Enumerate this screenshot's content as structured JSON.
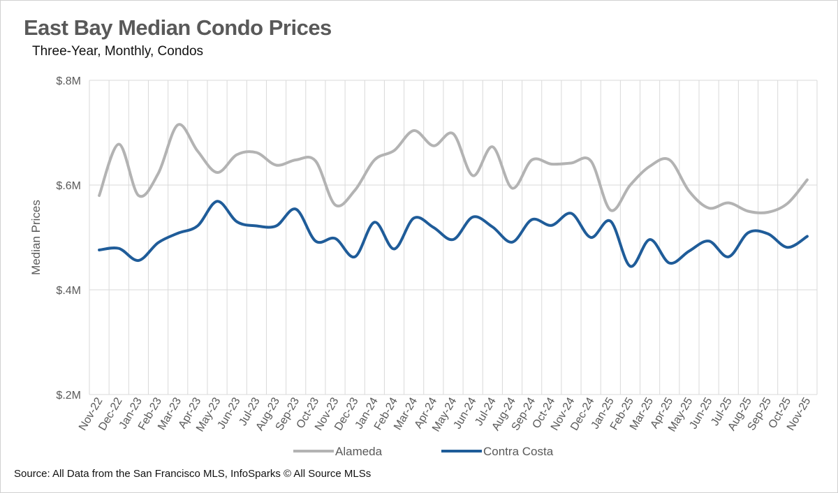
{
  "chart_data": {
    "type": "line",
    "title": "East Bay Median Condo Prices",
    "subtitle": "Three-Year, Monthly, Condos",
    "ylabel": "Median Prices",
    "xlabel": "",
    "source": "Source: All Data from the San Francisco MLS, InfoSparks © All Source MLSs",
    "ylim": [
      200000,
      800000
    ],
    "yticks": [
      {
        "value": 200000,
        "label": "$.2M"
      },
      {
        "value": 400000,
        "label": "$.4M"
      },
      {
        "value": 600000,
        "label": "$.6M"
      },
      {
        "value": 800000,
        "label": "$.8M"
      }
    ],
    "grid": true,
    "legend_position": "bottom",
    "categories": [
      "Nov-22",
      "Dec-22",
      "Jan-23",
      "Feb-23",
      "Mar-23",
      "Apr-23",
      "May-23",
      "Jun-23",
      "Jul-23",
      "Aug-23",
      "Sep-23",
      "Oct-23",
      "Nov-23",
      "Dec-23",
      "Jan-24",
      "Feb-24",
      "Mar-24",
      "Apr-24",
      "May-24",
      "Jun-24",
      "Jul-24",
      "Aug-24",
      "Sep-24",
      "Oct-24",
      "Nov-24",
      "Dec-24",
      "Jan-25",
      "Feb-25",
      "Mar-25",
      "Apr-25",
      "May-25",
      "Jun-25",
      "Jul-25",
      "Aug-25",
      "Sep-25",
      "Oct-25",
      "Nov-25"
    ],
    "series": [
      {
        "name": "Alameda",
        "color": "#b3b3b3",
        "values": [
          580000,
          678000,
          580000,
          622000,
          715000,
          665000,
          624000,
          658000,
          662000,
          638000,
          648000,
          646000,
          562000,
          590000,
          648000,
          666000,
          704000,
          675000,
          698000,
          618000,
          673000,
          594000,
          648000,
          640000,
          642000,
          646000,
          552000,
          600000,
          636000,
          648000,
          588000,
          556000,
          566000,
          550000,
          548000,
          565000,
          610000
        ]
      },
      {
        "name": "Contra Costa",
        "color": "#1f5c99",
        "values": [
          476000,
          479000,
          456000,
          490000,
          508000,
          522000,
          569000,
          530000,
          522000,
          522000,
          554000,
          493000,
          498000,
          463000,
          529000,
          478000,
          537000,
          519000,
          496000,
          539000,
          520000,
          491000,
          534000,
          523000,
          546000,
          500000,
          531000,
          445000,
          496000,
          451000,
          474000,
          493000,
          463000,
          509000,
          507000,
          481000,
          502000
        ]
      }
    ]
  }
}
